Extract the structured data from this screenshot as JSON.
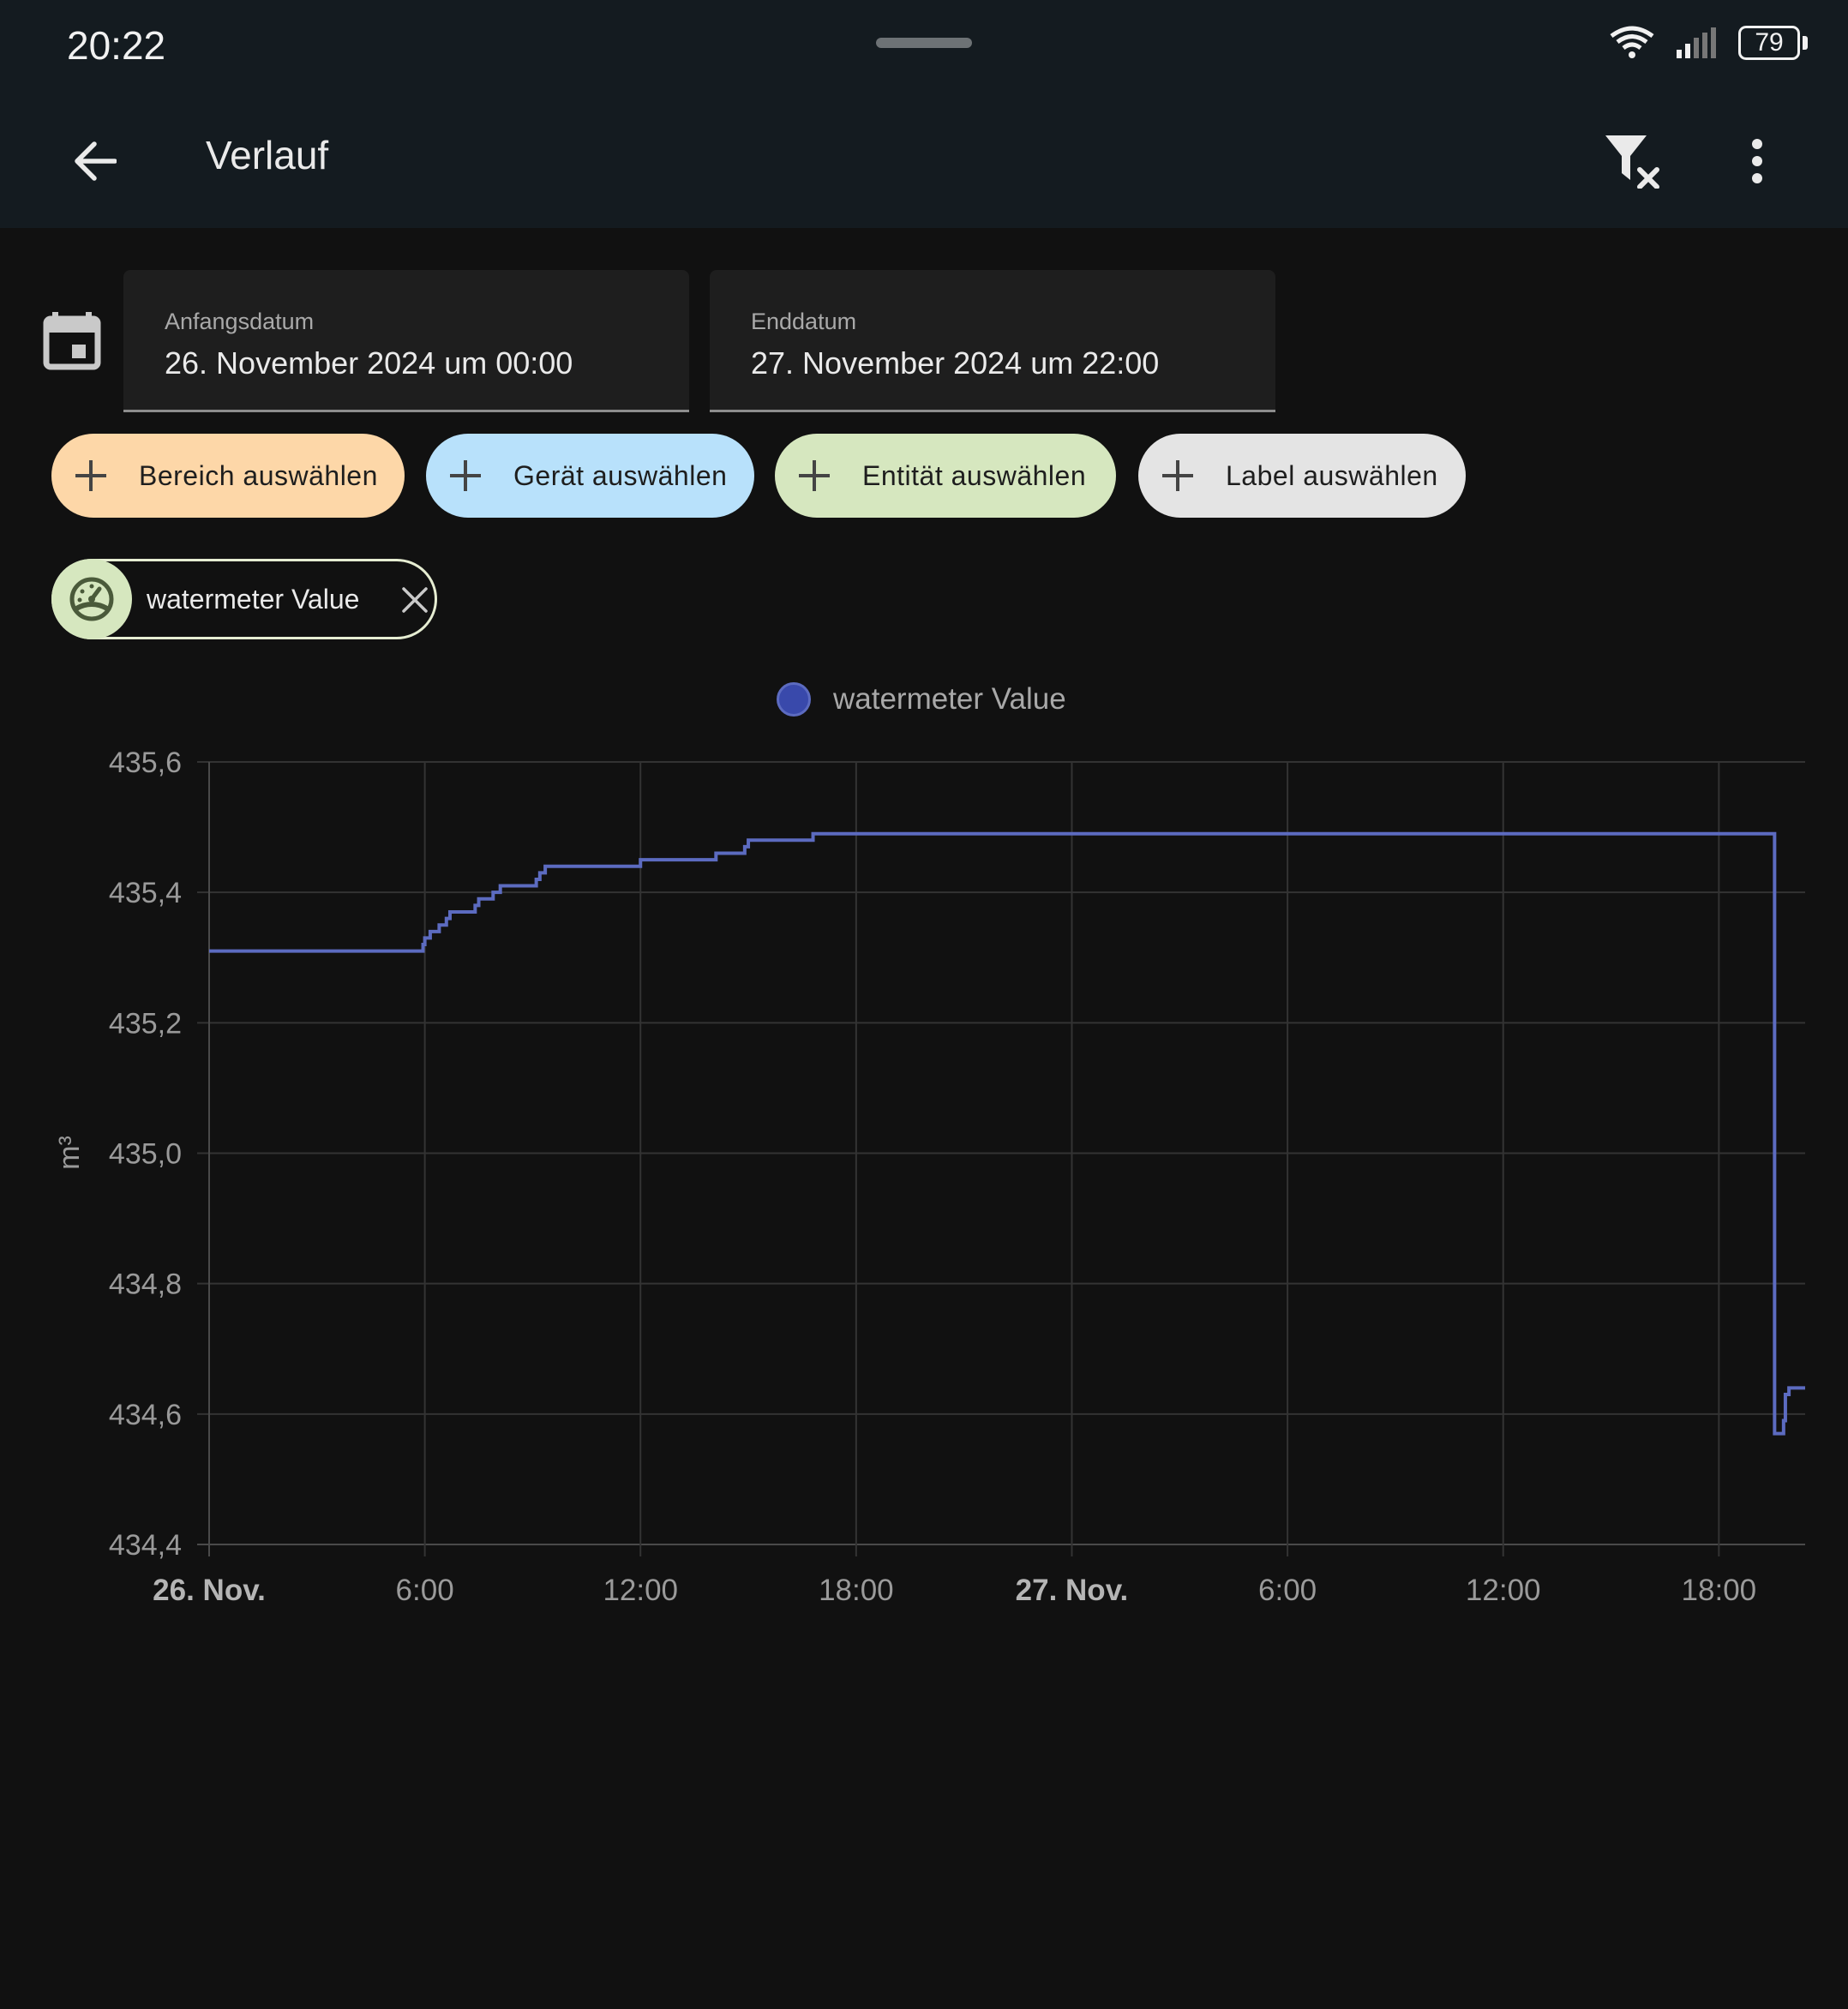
{
  "status_bar": {
    "time": "20:22",
    "battery": "79"
  },
  "app_bar": {
    "title": "Verlauf"
  },
  "date_range": {
    "start_label": "Anfangsdatum",
    "start_value": "26. November 2024 um 00:00",
    "end_label": "Enddatum",
    "end_value": "27. November 2024 um 22:00"
  },
  "target_chips": [
    {
      "label": "Bereich auswählen",
      "color": "#fdd7a8"
    },
    {
      "label": "Gerät auswählen",
      "color": "#b8e1fb"
    },
    {
      "label": "Entität auswählen",
      "color": "#d6e7bf"
    },
    {
      "label": "Label auswählen",
      "color": "#e4e4e4"
    }
  ],
  "selected_entity": {
    "label": "watermeter Value",
    "icon": "gauge-icon"
  },
  "chart_data": {
    "type": "line",
    "step": true,
    "legend": "watermeter Value",
    "ylabel": "m³",
    "ylim": [
      434.4,
      435.6
    ],
    "yticks": [
      "435,6",
      "435,4",
      "435,2",
      "435,0",
      "434,8",
      "434,6",
      "434,4"
    ],
    "xlim_hours": [
      0,
      44.4
    ],
    "xticks": [
      {
        "label": "26. Nov.",
        "hour": 0,
        "bold": true
      },
      {
        "label": "6:00",
        "hour": 6,
        "bold": false
      },
      {
        "label": "12:00",
        "hour": 12,
        "bold": false
      },
      {
        "label": "18:00",
        "hour": 18,
        "bold": false
      },
      {
        "label": "27. Nov.",
        "hour": 24,
        "bold": true
      },
      {
        "label": "6:00",
        "hour": 30,
        "bold": false
      },
      {
        "label": "12:00",
        "hour": 36,
        "bold": false
      },
      {
        "label": "18:00",
        "hour": 42,
        "bold": false
      }
    ],
    "series": [
      {
        "name": "watermeter Value",
        "color": "#5c6bc0",
        "points": [
          [
            0.0,
            435.31
          ],
          [
            5.95,
            435.32
          ],
          [
            6.0,
            435.33
          ],
          [
            6.15,
            435.34
          ],
          [
            6.4,
            435.35
          ],
          [
            6.6,
            435.36
          ],
          [
            6.7,
            435.37
          ],
          [
            7.4,
            435.38
          ],
          [
            7.5,
            435.39
          ],
          [
            7.9,
            435.4
          ],
          [
            8.1,
            435.41
          ],
          [
            9.1,
            435.42
          ],
          [
            9.2,
            435.43
          ],
          [
            9.35,
            435.44
          ],
          [
            12.0,
            435.45
          ],
          [
            14.1,
            435.46
          ],
          [
            14.9,
            435.47
          ],
          [
            15.0,
            435.48
          ],
          [
            16.8,
            435.49
          ],
          [
            43.55,
            434.57
          ],
          [
            43.8,
            434.59
          ],
          [
            43.85,
            434.63
          ],
          [
            43.95,
            434.64
          ],
          [
            44.4,
            434.64
          ]
        ]
      }
    ]
  }
}
